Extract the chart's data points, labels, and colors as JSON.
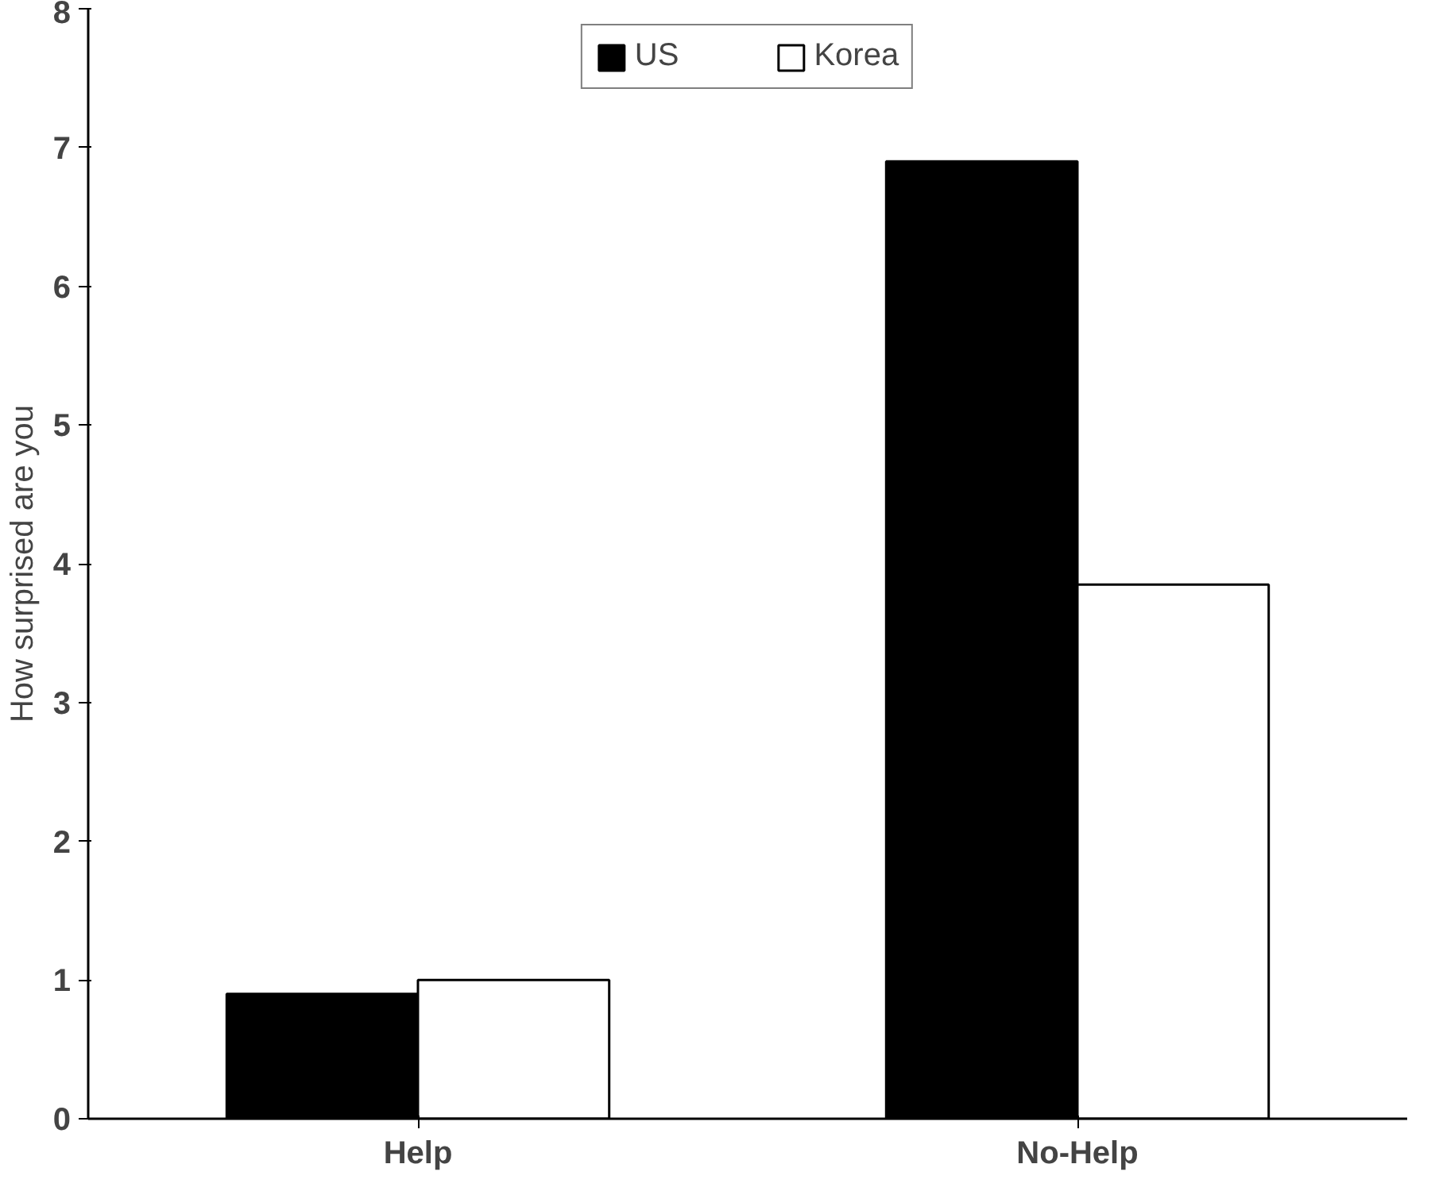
{
  "chart_data": {
    "type": "bar",
    "ylabel": "How surprised are you",
    "categories": [
      "Help",
      "No-Help"
    ],
    "series": [
      {
        "name": "US",
        "color": "#000000",
        "values": [
          0.9,
          6.9
        ]
      },
      {
        "name": "Korea",
        "color": "#ffffff",
        "values": [
          1.0,
          3.85
        ]
      }
    ],
    "ylim": [
      0,
      8
    ],
    "yticks": [
      0,
      1,
      2,
      3,
      4,
      5,
      6,
      7,
      8
    ],
    "grid": false,
    "legend": "top"
  }
}
